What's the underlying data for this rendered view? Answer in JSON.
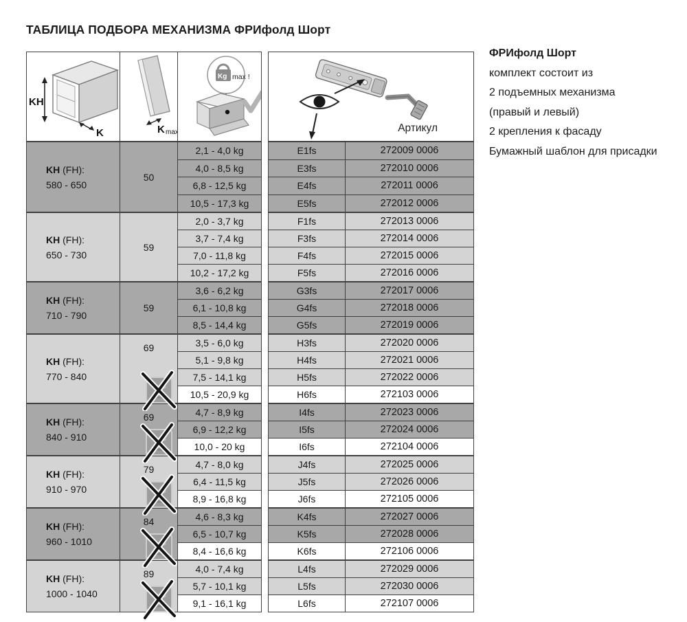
{
  "page_title": "ТАБЛИЦА ПОДБОРА МЕХАНИЗМА ФРИфолд Шорт",
  "header_icons": {
    "cabinet_height_label": "KH",
    "cabinet_thickness_label": "K",
    "panel_label_k": "K",
    "panel_label_max": "max",
    "weight_unit": "Kg",
    "weight_max_note": "max !",
    "article_column_header": "Артикул"
  },
  "info_panel": {
    "title": "ФРИфолд Шорт",
    "lines": [
      "комплект состоит из",
      "2 подъемных механизма",
      "(правый и левый)",
      "2 крепления к фасаду",
      "Бумажный шаблон для присадки"
    ]
  },
  "table": {
    "groups": [
      {
        "kh_label": "KH",
        "kh_suffix": "(FH):",
        "kh_range": "580 - 650",
        "k_max": "50",
        "servo_crossed_out": false,
        "shade": "dark",
        "rows": [
          {
            "weight_range": "2,1 - 4,0 kg",
            "model": "E1fs",
            "article": "272009 0006",
            "highlight": false
          },
          {
            "weight_range": "4,0 - 8,5 kg",
            "model": "E3fs",
            "article": "272010 0006",
            "highlight": false
          },
          {
            "weight_range": "6,8 - 12,5 kg",
            "model": "E4fs",
            "article": "272011 0006",
            "highlight": false
          },
          {
            "weight_range": "10,5 - 17,3 kg",
            "model": "E5fs",
            "article": "272012 0006",
            "highlight": false
          }
        ]
      },
      {
        "kh_label": "KH",
        "kh_suffix": "(FH):",
        "kh_range": "650 - 730",
        "k_max": "59",
        "servo_crossed_out": false,
        "shade": "light",
        "rows": [
          {
            "weight_range": "2,0 - 3,7 kg",
            "model": "F1fs",
            "article": "272013 0006",
            "highlight": false
          },
          {
            "weight_range": "3,7 - 7,4 kg",
            "model": "F3fs",
            "article": "272014 0006",
            "highlight": false
          },
          {
            "weight_range": "7,0 - 11,8 kg",
            "model": "F4fs",
            "article": "272015 0006",
            "highlight": false
          },
          {
            "weight_range": "10,2 - 17,2 kg",
            "model": "F5fs",
            "article": "272016 0006",
            "highlight": false
          }
        ]
      },
      {
        "kh_label": "KH",
        "kh_suffix": "(FH):",
        "kh_range": "710 - 790",
        "k_max": "59",
        "servo_crossed_out": false,
        "shade": "dark",
        "rows": [
          {
            "weight_range": "3,6 - 6,2 kg",
            "model": "G3fs",
            "article": "272017 0006",
            "highlight": false
          },
          {
            "weight_range": "6,1 - 10,8 kg",
            "model": "G4fs",
            "article": "272018 0006",
            "highlight": false
          },
          {
            "weight_range": "8,5 - 14,4 kg",
            "model": "G5fs",
            "article": "272019 0006",
            "highlight": false
          }
        ]
      },
      {
        "kh_label": "KH",
        "kh_suffix": "(FH):",
        "kh_range": "770 - 840",
        "k_max": "69",
        "servo_crossed_out": true,
        "shade": "light",
        "rows": [
          {
            "weight_range": "3,5 - 6,0 kg",
            "model": "H3fs",
            "article": "272020 0006",
            "highlight": false
          },
          {
            "weight_range": "5,1 - 9,8 kg",
            "model": "H4fs",
            "article": "272021 0006",
            "highlight": false
          },
          {
            "weight_range": "7,5 - 14,1 kg",
            "model": "H5fs",
            "article": "272022 0006",
            "highlight": false
          },
          {
            "weight_range": "10,5 - 20,9 kg",
            "model": "H6fs",
            "article": "272103 0006",
            "highlight": true
          }
        ]
      },
      {
        "kh_label": "KH",
        "kh_suffix": "(FH):",
        "kh_range": "840 - 910",
        "k_max": "69",
        "servo_crossed_out": true,
        "shade": "dark",
        "rows": [
          {
            "weight_range": "4,7 - 8,9 kg",
            "model": "I4fs",
            "article": "272023 0006",
            "highlight": false
          },
          {
            "weight_range": "6,9 - 12,2 kg",
            "model": "I5fs",
            "article": "272024 0006",
            "highlight": false
          },
          {
            "weight_range": "10,0 - 20 kg",
            "model": "I6fs",
            "article": "272104 0006",
            "highlight": true
          }
        ]
      },
      {
        "kh_label": "KH",
        "kh_suffix": "(FH):",
        "kh_range": "910 - 970",
        "k_max": "79",
        "servo_crossed_out": true,
        "shade": "light",
        "rows": [
          {
            "weight_range": "4,7 - 8,0 kg",
            "model": "J4fs",
            "article": "272025 0006",
            "highlight": false
          },
          {
            "weight_range": "6,4 - 11,5 kg",
            "model": "J5fs",
            "article": "272026 0006",
            "highlight": false
          },
          {
            "weight_range": "8,9 - 16,8 kg",
            "model": "J6fs",
            "article": "272105 0006",
            "highlight": true
          }
        ]
      },
      {
        "kh_label": "KH",
        "kh_suffix": "(FH):",
        "kh_range": "960 - 1010",
        "k_max": "84",
        "servo_crossed_out": true,
        "shade": "dark",
        "rows": [
          {
            "weight_range": "4,6 - 8,3 kg",
            "model": "K4fs",
            "article": "272027 0006",
            "highlight": false
          },
          {
            "weight_range": "6,5 - 10,7 kg",
            "model": "K5fs",
            "article": "272028 0006",
            "highlight": false
          },
          {
            "weight_range": "8,4 - 16,6 kg",
            "model": "K6fs",
            "article": "272106 0006",
            "highlight": true
          }
        ]
      },
      {
        "kh_label": "KH",
        "kh_suffix": "(FH):",
        "kh_range": "1000 - 1040",
        "k_max": "89",
        "servo_crossed_out": true,
        "shade": "light",
        "rows": [
          {
            "weight_range": "4,0 - 7,4 kg",
            "model": "L4fs",
            "article": "272029 0006",
            "highlight": false
          },
          {
            "weight_range": "5,7 - 10,1 kg",
            "model": "L5fs",
            "article": "272030 0006",
            "highlight": false
          },
          {
            "weight_range": "9,1 - 16,1 kg",
            "model": "L6fs",
            "article": "272107 0006",
            "highlight": true
          }
        ]
      }
    ]
  },
  "colors": {
    "dark_row": "#a8a8a8",
    "light_row": "#d4d4d4",
    "highlight_row": "#ffffff",
    "grid_line": "#3f3f3f"
  }
}
